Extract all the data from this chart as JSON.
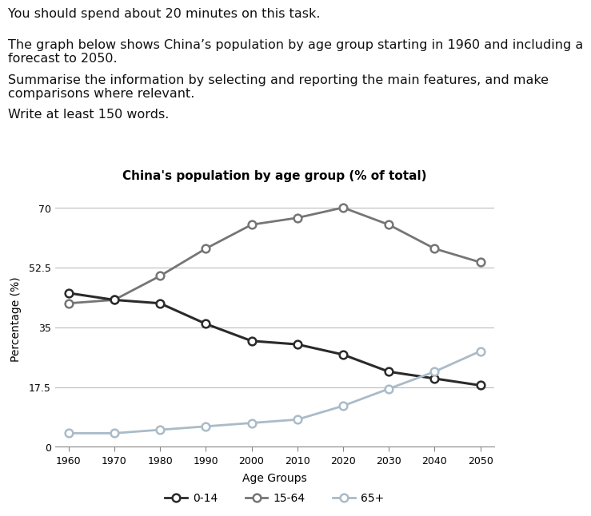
{
  "title": "China's population by age group (% of total)",
  "xlabel": "Age Groups",
  "ylabel": "Percentage (%)",
  "years": [
    1960,
    1970,
    1980,
    1990,
    2000,
    2010,
    2020,
    2030,
    2040,
    2050
  ],
  "age_0_14": [
    45,
    43,
    42,
    36,
    31,
    30,
    27,
    22,
    20,
    18
  ],
  "age_15_64": [
    42,
    43,
    50,
    58,
    65,
    67,
    70,
    65,
    58,
    54
  ],
  "age_65plus": [
    4,
    4,
    5,
    6,
    7,
    8,
    12,
    17,
    22,
    28
  ],
  "color_0_14": "#2a2a2a",
  "color_15_64": "#757575",
  "color_65plus": "#aabbc8",
  "yticks": [
    0,
    17.5,
    35,
    52.5,
    70
  ],
  "ylim": [
    0,
    75
  ],
  "background_color": "#ffffff",
  "header_lines": [
    "You should spend about 20 minutes on this task.",
    "The graph below shows China’s population by age group starting in 1960 and including a\nforecast to 2050.",
    "Summarise the information by selecting and reporting the main features, and make\ncomparisons where relevant.",
    "Write at least 150 words."
  ],
  "legend_labels": [
    "0-14",
    "15-64",
    "65+"
  ],
  "legend_colors": [
    "#2a2a2a",
    "#757575",
    "#aabbc8"
  ]
}
